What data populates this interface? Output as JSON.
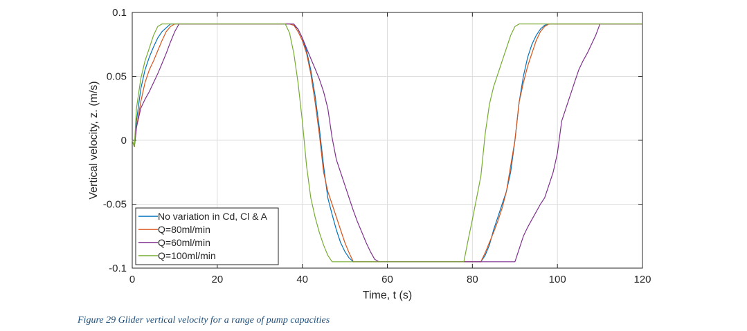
{
  "caption": "Figure 29 Glider vertical velocity for a range of pump capacities",
  "chart_data": {
    "type": "line",
    "title": "",
    "xlabel": "Time, t (s)",
    "ylabel": "Vertical velocity, z. (m/s)",
    "xlim": [
      0,
      120
    ],
    "ylim": [
      -0.1,
      0.1
    ],
    "xticks": [
      0,
      20,
      40,
      60,
      80,
      100,
      120
    ],
    "xtick_labels": [
      "0",
      "20",
      "40",
      "60",
      "80",
      "100",
      "120"
    ],
    "yticks": [
      -0.1,
      -0.05,
      0,
      0.05,
      0.1
    ],
    "ytick_labels": [
      "-0.1",
      "-0.05",
      "0",
      "0.05",
      "0.1"
    ],
    "grid": true,
    "legend_position": "bottom-left",
    "series": [
      {
        "name": "No variation in Cd, Cl & A",
        "color": "#0072bd",
        "x": [
          0,
          0.5,
          1,
          2,
          3,
          4,
          5,
          6,
          7,
          8,
          9,
          36,
          37,
          38,
          39,
          40,
          41,
          42,
          43,
          44,
          45,
          46,
          47,
          48,
          49,
          50,
          51,
          52,
          53,
          82,
          83,
          84,
          85,
          86,
          87,
          88,
          89,
          90,
          91,
          92,
          93,
          94,
          95,
          96,
          97,
          98,
          120
        ],
        "y": [
          0,
          -0.005,
          0.015,
          0.04,
          0.055,
          0.065,
          0.073,
          0.08,
          0.085,
          0.088,
          0.091,
          0.091,
          0.091,
          0.09,
          0.087,
          0.08,
          0.07,
          0.055,
          0.035,
          0.01,
          -0.02,
          -0.045,
          -0.058,
          -0.07,
          -0.08,
          -0.087,
          -0.092,
          -0.095,
          -0.095,
          -0.095,
          -0.09,
          -0.082,
          -0.07,
          -0.06,
          -0.05,
          -0.04,
          -0.025,
          0.0,
          0.03,
          0.05,
          0.065,
          0.075,
          0.082,
          0.087,
          0.09,
          0.091,
          0.091
        ]
      },
      {
        "name": "Q=80ml/min",
        "color": "#d95319",
        "x": [
          0,
          0.5,
          1,
          2,
          3,
          4,
          5,
          6,
          7,
          8,
          9,
          10,
          37,
          38,
          39,
          40,
          41,
          42,
          43,
          44,
          45,
          46,
          47,
          48,
          49,
          50,
          51,
          52,
          53,
          82,
          83,
          84,
          85,
          86,
          87,
          88,
          89,
          90,
          91,
          92,
          93,
          94,
          95,
          96,
          97,
          98,
          120
        ],
        "y": [
          0,
          -0.005,
          0.01,
          0.03,
          0.045,
          0.055,
          0.062,
          0.07,
          0.078,
          0.085,
          0.089,
          0.091,
          0.091,
          0.09,
          0.085,
          0.078,
          0.068,
          0.052,
          0.03,
          0.005,
          -0.025,
          -0.04,
          -0.05,
          -0.06,
          -0.07,
          -0.08,
          -0.088,
          -0.095,
          -0.095,
          -0.095,
          -0.088,
          -0.08,
          -0.072,
          -0.063,
          -0.053,
          -0.04,
          -0.02,
          0.0,
          0.03,
          0.045,
          0.058,
          0.068,
          0.078,
          0.085,
          0.089,
          0.091,
          0.091
        ]
      },
      {
        "name": "Q=60ml/min",
        "color": "#7e2f8e",
        "x": [
          0,
          0.5,
          1,
          2,
          3,
          4,
          5,
          6,
          7,
          8,
          9,
          10,
          11,
          12,
          38,
          39,
          40,
          41,
          42,
          43,
          44,
          45,
          46,
          47,
          48,
          49,
          50,
          51,
          52,
          53,
          54,
          55,
          56,
          57,
          58,
          59,
          60,
          90,
          91,
          92,
          93,
          94,
          95,
          96,
          97,
          98,
          99,
          100,
          101,
          102,
          103,
          104,
          105,
          106,
          107,
          108,
          109,
          110,
          120
        ],
        "y": [
          0,
          -0.005,
          0.01,
          0.025,
          0.032,
          0.038,
          0.045,
          0.052,
          0.06,
          0.068,
          0.077,
          0.085,
          0.091,
          0.091,
          0.091,
          0.087,
          0.08,
          0.072,
          0.064,
          0.056,
          0.048,
          0.038,
          0.025,
          0.002,
          -0.015,
          -0.025,
          -0.035,
          -0.045,
          -0.055,
          -0.064,
          -0.072,
          -0.08,
          -0.087,
          -0.093,
          -0.095,
          -0.095,
          -0.095,
          -0.095,
          -0.085,
          -0.075,
          -0.068,
          -0.062,
          -0.056,
          -0.05,
          -0.045,
          -0.035,
          -0.025,
          -0.01,
          0.015,
          0.025,
          0.035,
          0.045,
          0.055,
          0.062,
          0.068,
          0.075,
          0.082,
          0.091,
          0.091
        ]
      },
      {
        "name": "Q=100ml/min",
        "color": "#77ac30",
        "x": [
          0,
          0.5,
          1,
          2,
          3,
          4,
          5,
          6,
          7,
          36,
          37,
          38,
          39,
          40,
          41,
          42,
          43,
          44,
          45,
          46,
          47,
          48,
          78,
          79,
          80,
          81,
          82,
          83,
          84,
          85,
          86,
          87,
          88,
          89,
          90,
          91,
          120
        ],
        "y": [
          0,
          -0.005,
          0.025,
          0.048,
          0.062,
          0.072,
          0.082,
          0.089,
          0.091,
          0.091,
          0.084,
          0.068,
          0.045,
          0.015,
          -0.02,
          -0.045,
          -0.06,
          -0.072,
          -0.082,
          -0.09,
          -0.095,
          -0.095,
          -0.095,
          -0.078,
          -0.062,
          -0.045,
          -0.028,
          0.005,
          0.028,
          0.042,
          0.052,
          0.062,
          0.072,
          0.082,
          0.089,
          0.091,
          0.091
        ]
      }
    ]
  }
}
